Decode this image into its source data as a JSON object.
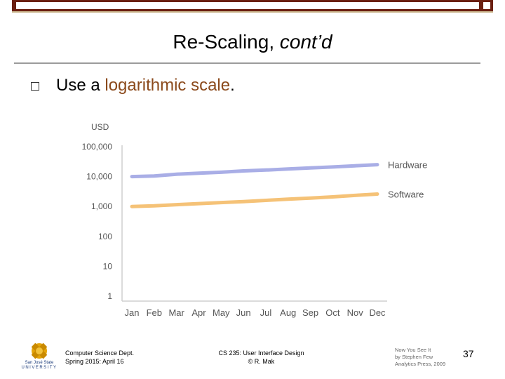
{
  "slide": {
    "title_main": "Re-Scaling, ",
    "title_italic": "cont’d",
    "bullet_prefix": "Use a ",
    "bullet_highlight": "logarithmic scale",
    "bullet_suffix": "."
  },
  "colors": {
    "hardware": "#a9aee6",
    "software": "#f5c277",
    "header_bar": "#6b1f10",
    "highlight": "#8b4a1c"
  },
  "chart_data": {
    "type": "line",
    "ylabel": "USD",
    "y_scale": "log",
    "ylim": [
      1,
      100000
    ],
    "y_ticks": [
      {
        "value": 100000,
        "label": "100,000"
      },
      {
        "value": 10000,
        "label": "10,000"
      },
      {
        "value": 1000,
        "label": "1,000"
      },
      {
        "value": 100,
        "label": "100"
      },
      {
        "value": 10,
        "label": "10"
      },
      {
        "value": 1,
        "label": "1"
      }
    ],
    "categories": [
      "Jan",
      "Feb",
      "Mar",
      "Apr",
      "May",
      "Jun",
      "Jul",
      "Aug",
      "Sep",
      "Oct",
      "Nov",
      "Dec"
    ],
    "series": [
      {
        "name": "Hardware",
        "values": [
          10000,
          10500,
          12000,
          13000,
          14000,
          15500,
          16500,
          18000,
          19500,
          21000,
          23000,
          25000
        ]
      },
      {
        "name": "Software",
        "values": [
          1000,
          1050,
          1150,
          1250,
          1350,
          1450,
          1600,
          1750,
          1900,
          2100,
          2350,
          2600
        ]
      }
    ],
    "legend_placement": "right, at line ends",
    "grid": false
  },
  "footer": {
    "dept_line1": "Computer Science Dept.",
    "dept_line2": "Spring 2015: April 16",
    "course_line1": "CS 235: User Interface Design",
    "course_line2": "© R. Mak",
    "book_line1": "Now You See It",
    "book_line2": "by Stephen Few",
    "book_line3": "Analytics Press, 2009",
    "page_number": "37",
    "logo_line1": "San José State",
    "logo_line2": "UNIVERSITY"
  }
}
